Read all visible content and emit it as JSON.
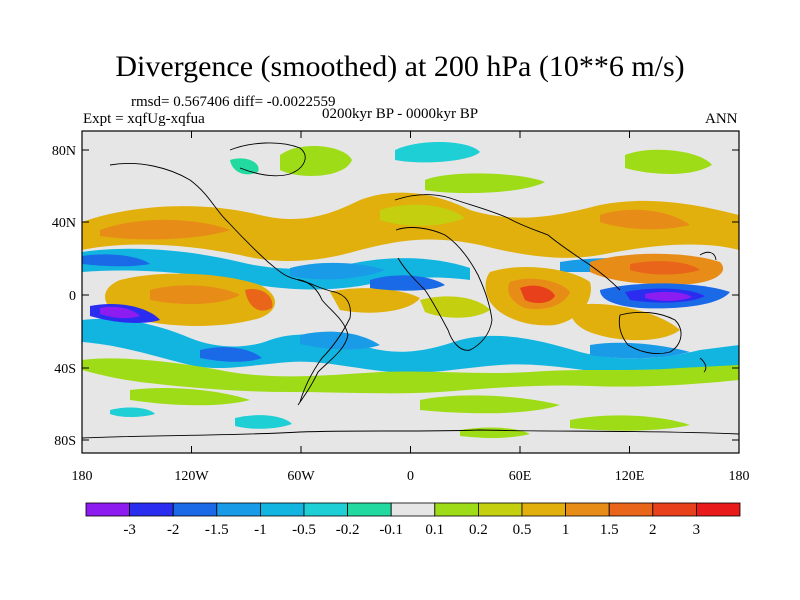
{
  "title": "Divergence (smoothed) at 200 hPa (10**6 m/s)",
  "stats_text": "rmsd= 0.567406 diff= -0.0022559",
  "expt_text": "Expt = xqfUg-xqfua",
  "period_text": "0200kyr BP - 0000kyr BP",
  "season_text": "ANN",
  "x_ticks": [
    "180",
    "120W",
    "60W",
    "0",
    "60E",
    "120E",
    "180"
  ],
  "y_ticks": [
    "80N",
    "40N",
    "0",
    "40S",
    "80S"
  ],
  "colorbar": {
    "labels": [
      "-3",
      "-2",
      "-1.5",
      "-1",
      "-0.5",
      "-0.2",
      "-0.1",
      "0.1",
      "0.2",
      "0.5",
      "1",
      "1.5",
      "2",
      "3"
    ],
    "colors": [
      "#8d1cf0",
      "#2a2df0",
      "#1a6ae8",
      "#1a9be8",
      "#12b5e0",
      "#1ecfd6",
      "#22d9a0",
      "#e6e6e6",
      "#9fdc18",
      "#c4cf0f",
      "#e2b00c",
      "#e88c18",
      "#e8651a",
      "#e8401a",
      "#e81a1a"
    ]
  }
}
